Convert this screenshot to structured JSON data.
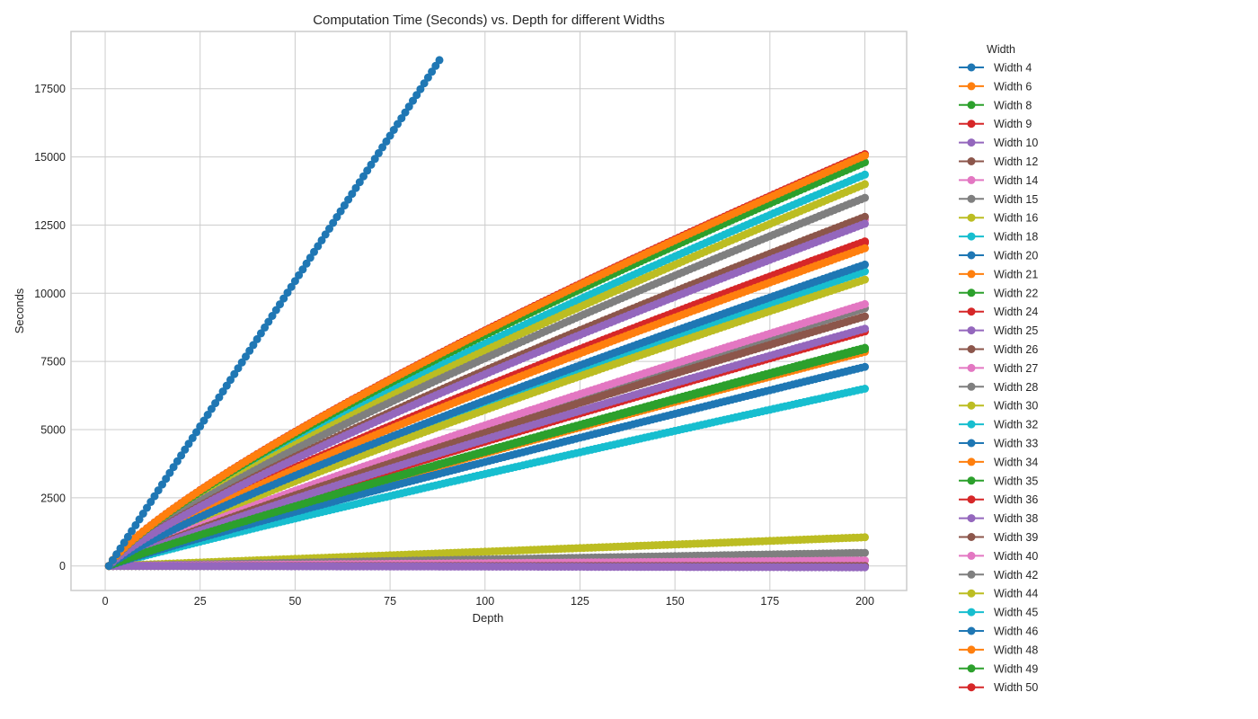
{
  "chart_data": {
    "type": "line",
    "title": "Computation Time (Seconds) vs. Depth for different Widths",
    "xlabel": "Depth",
    "ylabel": "Seconds",
    "xlim": [
      -9,
      211
    ],
    "ylim": [
      -900,
      19600
    ],
    "xticks": [
      0,
      25,
      50,
      75,
      100,
      125,
      150,
      175,
      200
    ],
    "yticks": [
      0,
      2500,
      5000,
      7500,
      10000,
      12500,
      15000,
      17500
    ],
    "grid": true,
    "legend_title": "Width",
    "legend_placement": "outside-right",
    "x_start": 1,
    "series": [
      {
        "name": "Width 4",
        "color": "#1f77b4",
        "x_end": 88,
        "end": 18550,
        "curve": 1.0
      },
      {
        "name": "Width 6",
        "color": "#ff7f0e",
        "x_end": 200,
        "end": 15050,
        "curve": 0.8
      },
      {
        "name": "Width 8",
        "color": "#2ca02c",
        "x_end": 200,
        "end": 14800,
        "curve": 0.8
      },
      {
        "name": "Width 9",
        "color": "#d62728",
        "x_end": 200,
        "end": 15100,
        "curve": 0.8
      },
      {
        "name": "Width 10",
        "color": "#9467bd",
        "x_end": 200,
        "end": 12550,
        "curve": 0.83
      },
      {
        "name": "Width 12",
        "color": "#8c564b",
        "x_end": 200,
        "end": 12800,
        "curve": 0.83
      },
      {
        "name": "Width 14",
        "color": "#e377c2",
        "x_end": 200,
        "end": 12700,
        "curve": 0.83
      },
      {
        "name": "Width 15",
        "color": "#7f7f7f",
        "x_end": 200,
        "end": 13500,
        "curve": 0.82
      },
      {
        "name": "Width 16",
        "color": "#bcbd22",
        "x_end": 200,
        "end": 14000,
        "curve": 0.82
      },
      {
        "name": "Width 18",
        "color": "#17becf",
        "x_end": 200,
        "end": 14350,
        "curve": 0.81
      },
      {
        "name": "Width 20",
        "color": "#1f77b4",
        "x_end": 200,
        "end": 11050,
        "curve": 0.86
      },
      {
        "name": "Width 21",
        "color": "#ff7f0e",
        "x_end": 200,
        "end": 11650,
        "curve": 0.85
      },
      {
        "name": "Width 22",
        "color": "#2ca02c",
        "x_end": 200,
        "end": 7950,
        "curve": 0.92
      },
      {
        "name": "Width 24",
        "color": "#d62728",
        "x_end": 200,
        "end": 11900,
        "curve": 0.85
      },
      {
        "name": "Width 25",
        "color": "#9467bd",
        "x_end": 200,
        "end": 8700,
        "curve": 0.9
      },
      {
        "name": "Width 26",
        "color": "#8c564b",
        "x_end": 200,
        "end": 9150,
        "curve": 0.9
      },
      {
        "name": "Width 27",
        "color": "#e377c2",
        "x_end": 200,
        "end": 9600,
        "curve": 0.89
      },
      {
        "name": "Width 28",
        "color": "#7f7f7f",
        "x_end": 200,
        "end": 9450,
        "curve": 0.89
      },
      {
        "name": "Width 30",
        "color": "#bcbd22",
        "x_end": 200,
        "end": 10500,
        "curve": 0.87
      },
      {
        "name": "Width 32",
        "color": "#17becf",
        "x_end": 200,
        "end": 10800,
        "curve": 0.87
      },
      {
        "name": "Width 33",
        "color": "#1f77b4",
        "x_end": 200,
        "end": 7300,
        "curve": 0.93
      },
      {
        "name": "Width 34",
        "color": "#ff7f0e",
        "x_end": 200,
        "end": 7850,
        "curve": 0.92
      },
      {
        "name": "Width 35",
        "color": "#2ca02c",
        "x_end": 200,
        "end": 8000,
        "curve": 0.92
      },
      {
        "name": "Width 36",
        "color": "#d62728",
        "x_end": 200,
        "end": 8600,
        "curve": 0.91
      },
      {
        "name": "Width 38",
        "color": "#9467bd",
        "x_end": 200,
        "end": -50,
        "curve": 1.0
      },
      {
        "name": "Width 39",
        "color": "#8c564b",
        "x_end": 200,
        "end": 0,
        "curve": 1.0
      },
      {
        "name": "Width 40",
        "color": "#e377c2",
        "x_end": 200,
        "end": 200,
        "curve": 1.0
      },
      {
        "name": "Width 42",
        "color": "#7f7f7f",
        "x_end": 200,
        "end": 480,
        "curve": 1.0
      },
      {
        "name": "Width 44",
        "color": "#bcbd22",
        "x_end": 200,
        "end": 1050,
        "curve": 1.0
      },
      {
        "name": "Width 45",
        "color": "#17becf",
        "x_end": 200,
        "end": 6500,
        "curve": 0.94
      },
      {
        "name": "Width 46",
        "color": "#1f77b4",
        "x_end": 200,
        "end": 0,
        "curve": 1.0
      },
      {
        "name": "Width 48",
        "color": "#ff7f0e",
        "x_end": 200,
        "end": 0,
        "curve": 1.0
      },
      {
        "name": "Width 49",
        "color": "#2ca02c",
        "x_end": 200,
        "end": -20,
        "curve": 1.0
      },
      {
        "name": "Width 50",
        "color": "#d62728",
        "x_end": 200,
        "end": 11850,
        "curve": 0.85
      }
    ]
  }
}
